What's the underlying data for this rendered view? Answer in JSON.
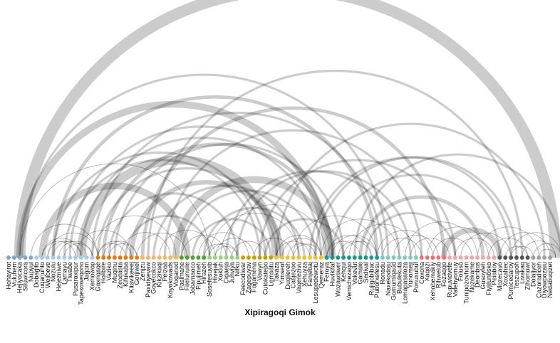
{
  "title": "Xipiragoqi Gimok",
  "colors": {
    "arc": "#000000",
    "groups": [
      "#7ea6c6",
      "#a9cbe8",
      "#e8790c",
      "#f5b567",
      "#5aa02c",
      "#96d384",
      "#c8a000",
      "#f0c232",
      "#1a9c8a",
      "#7fcdbb",
      "#e87474",
      "#f2a6a6",
      "#555555",
      "#a0a0a0"
    ]
  },
  "nodes": [
    {
      "label": "Hohayirot",
      "group": 0
    },
    {
      "label": "Vuluhem",
      "group": 0
    },
    {
      "label": "Hejiyocaka",
      "group": 0
    },
    {
      "label": "Siluwicora",
      "group": 0
    },
    {
      "label": "Nupyul",
      "group": 0
    },
    {
      "label": "Dobagifo",
      "group": 1
    },
    {
      "label": "Cuqarjuhto",
      "group": 1
    },
    {
      "label": "Wejibeve",
      "group": 1
    },
    {
      "label": "Nozulu",
      "group": 1
    },
    {
      "label": "Hejezniwe",
      "group": 1
    },
    {
      "label": "Lamayu",
      "group": 1
    },
    {
      "label": "Tiwabe",
      "group": 1
    },
    {
      "label": "Pusaroxipur",
      "group": 1
    },
    {
      "label": "Tapexoweqono",
      "group": 1
    },
    {
      "label": "Jagom",
      "group": 1
    },
    {
      "label": "Xemowop",
      "group": 1
    },
    {
      "label": "Gaxriqaqe",
      "group": 2
    },
    {
      "label": "Holibire",
      "group": 2
    },
    {
      "label": "Vaziko",
      "group": 2
    },
    {
      "label": "Muqinu",
      "group": 2
    },
    {
      "label": "Zeodasta",
      "group": 2
    },
    {
      "label": "Kifukaba",
      "group": 2
    },
    {
      "label": "Kitavikeeej",
      "group": 2
    },
    {
      "label": "Gorjiwel",
      "group": 2
    },
    {
      "label": "Zenjzu",
      "group": 3
    },
    {
      "label": "Paxidiyevaw",
      "group": 3
    },
    {
      "label": "Goyecokco",
      "group": 3
    },
    {
      "label": "Kikzikaqi",
      "group": 3
    },
    {
      "label": "Pelzoa",
      "group": 3
    },
    {
      "label": "Koyokowads",
      "group": 3
    },
    {
      "label": "Voganod",
      "group": 3
    },
    {
      "label": "Pasimahe",
      "group": 4
    },
    {
      "label": "Filelunuile",
      "group": 4
    },
    {
      "label": "Jobamaoco",
      "group": 4
    },
    {
      "label": "Fipujimeh",
      "group": 4
    },
    {
      "label": "Hirazeh",
      "group": 4
    },
    {
      "label": "Sosefesuvib",
      "group": 5
    },
    {
      "label": "Hivejak",
      "group": 5
    },
    {
      "label": "Xokiuh",
      "group": 5
    },
    {
      "label": "Cigaeja",
      "group": 5
    },
    {
      "label": "Junviya",
      "group": 5
    },
    {
      "label": "Nifku",
      "group": 5
    },
    {
      "label": "Feecodiwar",
      "group": 6
    },
    {
      "label": "Zagepuyav",
      "group": 6
    },
    {
      "label": "Fogamena",
      "group": 6
    },
    {
      "label": "Vowyn",
      "group": 6
    },
    {
      "label": "Cutokatepo",
      "group": 6
    },
    {
      "label": "Lemsatu",
      "group": 6
    },
    {
      "label": "Takaza",
      "group": 7
    },
    {
      "label": "Yimseof",
      "group": 7
    },
    {
      "label": "Dugilereh",
      "group": 7
    },
    {
      "label": "Casjezoo",
      "group": 7
    },
    {
      "label": "Vaqerezivu",
      "group": 7
    },
    {
      "label": "Xehuyza",
      "group": 7
    },
    {
      "label": "Fanjebaj",
      "group": 7
    },
    {
      "label": "Lesupedewotu",
      "group": 7
    },
    {
      "label": "Qemeraz",
      "group": 7
    },
    {
      "label": "Feroya",
      "group": 8
    },
    {
      "label": "Huvikitaf",
      "group": 8
    },
    {
      "label": "Wozawawer",
      "group": 8
    },
    {
      "label": "Kehqui",
      "group": 8
    },
    {
      "label": "Vemichezago",
      "group": 8
    },
    {
      "label": "Vekevut",
      "group": 8
    },
    {
      "label": "Gamale",
      "group": 8
    },
    {
      "label": "Sedival",
      "group": 8
    },
    {
      "label": "Rujigobibac",
      "group": 8
    },
    {
      "label": "Puborxefesu",
      "group": 8
    },
    {
      "label": "Ronadu",
      "group": 9
    },
    {
      "label": "Naxekodoju",
      "group": 9
    },
    {
      "label": "Gomumiqaud",
      "group": 9
    },
    {
      "label": "Bubulekuta",
      "group": 9
    },
    {
      "label": "Lomapasatoza",
      "group": 9
    },
    {
      "label": "Yunomeji",
      "group": 9
    },
    {
      "label": "Ponuxubuf",
      "group": 9
    },
    {
      "label": "Coxona",
      "group": 10
    },
    {
      "label": "Xaqazi",
      "group": 10
    },
    {
      "label": "Xehobemakiy",
      "group": 10
    },
    {
      "label": "Rihweiub",
      "group": 10
    },
    {
      "label": "Fozaqqo",
      "group": 10
    },
    {
      "label": "Rupuvidvefe",
      "group": 11
    },
    {
      "label": "Vafehyomuy",
      "group": 11
    },
    {
      "label": "Foluso",
      "group": 11
    },
    {
      "label": "Tunipozovhom",
      "group": 11
    },
    {
      "label": "Nozekame",
      "group": 11
    },
    {
      "label": "Deonbos",
      "group": 11
    },
    {
      "label": "Gusoyfeh",
      "group": 11
    },
    {
      "label": "Fiyjilunbsko",
      "group": 11
    },
    {
      "label": "Peiaboy",
      "group": 11
    },
    {
      "label": "Mozecavo",
      "group": 12
    },
    {
      "label": "Xoxahec",
      "group": 12
    },
    {
      "label": "Pumicedaroy",
      "group": 12
    },
    {
      "label": "Teszupoh",
      "group": 12
    },
    {
      "label": "Livakaq",
      "group": 12
    },
    {
      "label": "Zihomowr",
      "group": 12
    },
    {
      "label": "Dolaljyor",
      "group": 13
    },
    {
      "label": "Cazoradiceh",
      "group": 13
    },
    {
      "label": "Diyowpozaiu",
      "group": 13
    },
    {
      "label": "Nedabuqizet",
      "group": 13
    }
  ],
  "links": [
    [
      2,
      98,
      10
    ],
    [
      2,
      57,
      6
    ],
    [
      2,
      68,
      2
    ],
    [
      8,
      66,
      3
    ],
    [
      8,
      46,
      2
    ],
    [
      15,
      67,
      2
    ],
    [
      17,
      58,
      3
    ],
    [
      11,
      58,
      2
    ],
    [
      13,
      48,
      8
    ],
    [
      13,
      56,
      2
    ],
    [
      16,
      48,
      2
    ],
    [
      19,
      60,
      2
    ],
    [
      22,
      49,
      4
    ],
    [
      24,
      78,
      3
    ],
    [
      25,
      92,
      2
    ],
    [
      28,
      74,
      2
    ],
    [
      30,
      58,
      6
    ],
    [
      31,
      55,
      2
    ],
    [
      39,
      70,
      2
    ],
    [
      41,
      72,
      2
    ],
    [
      45,
      80,
      2
    ],
    [
      48,
      96,
      2
    ],
    [
      54,
      90,
      2
    ],
    [
      58,
      88,
      2
    ],
    [
      62,
      99,
      2
    ],
    [
      63,
      85,
      3
    ],
    [
      55,
      91,
      2
    ],
    [
      6,
      32,
      6
    ],
    [
      2,
      36,
      1
    ],
    [
      10,
      45,
      2
    ],
    [
      18,
      41,
      2
    ],
    [
      15,
      30,
      1
    ],
    [
      21,
      36,
      2
    ],
    [
      26,
      52,
      2
    ],
    [
      33,
      47,
      2
    ],
    [
      35,
      53,
      2
    ],
    [
      36,
      52,
      1
    ],
    [
      38,
      57,
      1
    ],
    [
      46,
      60,
      2
    ],
    [
      51,
      66,
      1
    ],
    [
      56,
      70,
      1
    ],
    [
      61,
      73,
      1
    ],
    [
      64,
      80,
      2
    ],
    [
      66,
      76,
      1
    ],
    [
      75,
      86,
      1
    ],
    [
      71,
      84,
      1
    ],
    [
      78,
      88,
      5
    ],
    [
      81,
      90,
      1
    ],
    [
      84,
      95,
      1
    ],
    [
      88,
      97,
      1
    ],
    [
      90,
      99,
      1
    ],
    [
      4,
      16,
      1
    ],
    [
      7,
      16,
      1
    ],
    [
      12,
      22,
      1
    ],
    [
      20,
      29,
      1
    ],
    [
      23,
      32,
      1
    ],
    [
      27,
      37,
      1
    ],
    [
      31,
      39,
      1
    ],
    [
      34,
      43,
      1
    ],
    [
      37,
      44,
      1
    ],
    [
      40,
      46,
      1
    ],
    [
      44,
      51,
      1
    ],
    [
      67,
      74,
      1
    ],
    [
      69,
      77,
      1
    ],
    [
      72,
      79,
      1
    ],
    [
      76,
      83,
      1
    ],
    [
      80,
      87,
      1
    ],
    [
      86,
      93,
      1
    ],
    [
      92,
      98,
      1
    ],
    [
      94,
      99,
      1
    ],
    [
      6,
      12,
      1
    ],
    [
      6,
      13,
      1
    ],
    [
      7,
      13,
      1
    ],
    [
      8,
      14,
      1
    ],
    [
      9,
      15,
      1
    ],
    [
      10,
      15,
      1
    ],
    [
      16,
      22,
      1
    ],
    [
      17,
      23,
      1
    ],
    [
      16,
      21,
      1
    ],
    [
      18,
      23,
      1
    ],
    [
      36,
      41,
      1
    ],
    [
      37,
      41,
      1
    ],
    [
      35,
      40,
      1
    ],
    [
      48,
      56,
      1
    ],
    [
      49,
      56,
      1
    ],
    [
      50,
      55,
      1
    ],
    [
      48,
      54,
      1
    ],
    [
      51,
      56,
      1
    ],
    [
      57,
      65,
      1
    ],
    [
      58,
      66,
      1
    ],
    [
      59,
      65,
      1
    ],
    [
      57,
      63,
      1
    ],
    [
      60,
      66,
      1
    ],
    [
      89,
      93,
      1
    ],
    [
      90,
      94,
      1
    ],
    [
      95,
      98,
      1
    ]
  ]
}
